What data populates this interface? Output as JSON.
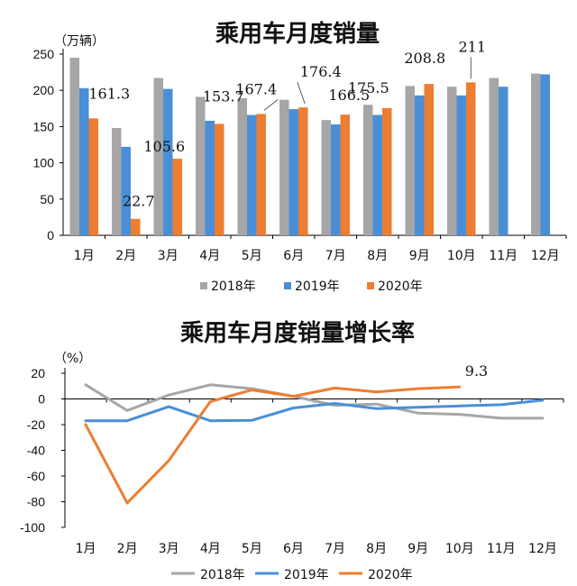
{
  "chart_data": [
    {
      "type": "bar",
      "title": "乘用车月度销量",
      "unit_label": "（万辆）",
      "categories": [
        "1月",
        "2月",
        "3月",
        "4月",
        "5月",
        "6月",
        "7月",
        "8月",
        "9月",
        "10月",
        "11月",
        "12月"
      ],
      "ylim": [
        0,
        250
      ],
      "yticks": [
        "0",
        "50",
        "100",
        "150",
        "200",
        "250"
      ],
      "series": [
        {
          "name": "2018年",
          "color": "#A6A6A6",
          "values": [
            245,
            148,
            217,
            191,
            189,
            187,
            159,
            180,
            206,
            205,
            217,
            223
          ]
        },
        {
          "name": "2019年",
          "color": "#4A8FD6",
          "values": [
            203,
            122,
            202,
            158,
            166,
            174,
            153,
            166,
            193,
            193,
            205,
            222
          ]
        },
        {
          "name": "2020年",
          "color": "#ED7D31",
          "values": [
            161.3,
            22.7,
            105.6,
            153.7,
            167.4,
            176.4,
            166.5,
            175.5,
            208.8,
            211,
            null,
            null
          ]
        }
      ],
      "data_labels": [
        {
          "text": "161.3",
          "month": 0
        },
        {
          "text": "22.7",
          "month": 1
        },
        {
          "text": "105.6",
          "month": 2
        },
        {
          "text": "153.7",
          "month": 3
        },
        {
          "text": "167.4",
          "month": 4
        },
        {
          "text": "176.4",
          "month": 5
        },
        {
          "text": "166.5",
          "month": 6
        },
        {
          "text": "175.5",
          "month": 7
        },
        {
          "text": "208.8",
          "month": 8
        },
        {
          "text": "211",
          "month": 9
        }
      ],
      "legend": [
        "2018年",
        "2019年",
        "2020年"
      ],
      "legend_position": "bottom",
      "grid": false
    },
    {
      "type": "line",
      "title": "乘用车月度销量增长率",
      "unit_label": "（%）",
      "categories": [
        "1月",
        "2月",
        "3月",
        "4月",
        "5月",
        "6月",
        "7月",
        "8月",
        "9月",
        "10月",
        "11月",
        "12月"
      ],
      "ylim": [
        -100,
        20
      ],
      "yticks": [
        "20",
        "0",
        "-20",
        "-40",
        "-60",
        "-80",
        "-100"
      ],
      "series": [
        {
          "name": "2018年",
          "color": "#A6A6A6",
          "values": [
            11,
            -9,
            3,
            11,
            8,
            2,
            -5,
            -4,
            -11,
            -12,
            -15,
            -15
          ]
        },
        {
          "name": "2019年",
          "color": "#4A8FD6",
          "values": [
            -17,
            -17,
            -6,
            -17,
            -16.6,
            -7,
            -3.5,
            -7.5,
            -6.5,
            -5.5,
            -4.5,
            -1
          ]
        },
        {
          "name": "2020年",
          "color": "#ED7D31",
          "values": [
            -20,
            -81,
            -48,
            -2,
            7,
            2,
            8.5,
            5.5,
            8,
            9.3,
            null,
            null
          ]
        }
      ],
      "data_labels": [
        {
          "text": "9.3",
          "month": 9
        }
      ],
      "legend": [
        "2018年",
        "2019年",
        "2020年"
      ],
      "legend_position": "bottom",
      "grid": false
    }
  ]
}
